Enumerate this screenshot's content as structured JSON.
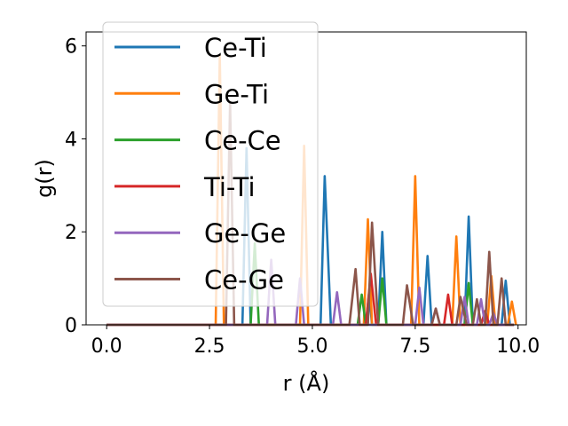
{
  "chart_data": {
    "type": "line",
    "title": "",
    "xlabel": "r (Å)",
    "ylabel": "g(r)",
    "xlim": [
      -0.5,
      10.2
    ],
    "ylim": [
      0,
      6.3
    ],
    "xticks": [
      0.0,
      2.5,
      5.0,
      7.5,
      10.0
    ],
    "xtick_labels": [
      "0.0",
      "2.5",
      "5.0",
      "7.5",
      "10.0"
    ],
    "yticks": [
      0,
      2,
      4,
      6
    ],
    "ytick_labels": [
      "0",
      "2",
      "4",
      "6"
    ],
    "grid": false,
    "legend": "upper-left",
    "series": [
      {
        "name": "Ce-Ti",
        "color": "#1f77b4",
        "points": [
          [
            0,
            0
          ],
          [
            3.3,
            0
          ],
          [
            3.4,
            3.8
          ],
          [
            3.5,
            0
          ],
          [
            5.2,
            0
          ],
          [
            5.3,
            3.2
          ],
          [
            5.45,
            0
          ],
          [
            6.3,
            0
          ],
          [
            6.38,
            0.7
          ],
          [
            6.45,
            0
          ],
          [
            6.6,
            0
          ],
          [
            6.7,
            2.0
          ],
          [
            6.8,
            0
          ],
          [
            7.7,
            0
          ],
          [
            7.8,
            1.48
          ],
          [
            7.9,
            0
          ],
          [
            8.7,
            0
          ],
          [
            8.8,
            2.33
          ],
          [
            8.9,
            0
          ],
          [
            9.6,
            0
          ],
          [
            9.7,
            0.95
          ],
          [
            9.8,
            0
          ],
          [
            9.9,
            0
          ]
        ]
      },
      {
        "name": "Ge-Ti",
        "color": "#ff7f0e",
        "points": [
          [
            0,
            0
          ],
          [
            2.65,
            0
          ],
          [
            2.75,
            5.8
          ],
          [
            2.85,
            0
          ],
          [
            4.7,
            0
          ],
          [
            4.8,
            3.85
          ],
          [
            4.9,
            0
          ],
          [
            6.25,
            0
          ],
          [
            6.35,
            2.27
          ],
          [
            6.45,
            0
          ],
          [
            7.4,
            0
          ],
          [
            7.5,
            3.2
          ],
          [
            7.6,
            0
          ],
          [
            8.4,
            0
          ],
          [
            8.5,
            1.9
          ],
          [
            8.6,
            0
          ],
          [
            9.25,
            0
          ],
          [
            9.35,
            1.05
          ],
          [
            9.45,
            0
          ],
          [
            9.75,
            0
          ],
          [
            9.85,
            0.5
          ],
          [
            9.95,
            0
          ]
        ]
      },
      {
        "name": "Ce-Ce",
        "color": "#2ca02c",
        "points": [
          [
            0,
            0
          ],
          [
            3.5,
            0
          ],
          [
            3.6,
            1.75
          ],
          [
            3.7,
            0
          ],
          [
            6.1,
            0
          ],
          [
            6.2,
            0.65
          ],
          [
            6.3,
            0
          ],
          [
            6.6,
            0
          ],
          [
            6.7,
            1.0
          ],
          [
            6.8,
            0
          ],
          [
            8.7,
            0
          ],
          [
            8.8,
            0.9
          ],
          [
            8.9,
            0
          ],
          [
            9.9,
            0
          ]
        ]
      },
      {
        "name": "Ti-Ti",
        "color": "#d62728",
        "points": [
          [
            0,
            0
          ],
          [
            6.3,
            0
          ],
          [
            6.42,
            1.1
          ],
          [
            6.55,
            0
          ],
          [
            8.2,
            0
          ],
          [
            8.3,
            0.65
          ],
          [
            8.4,
            0
          ],
          [
            9.1,
            0
          ],
          [
            9.2,
            0.3
          ],
          [
            9.3,
            0
          ],
          [
            9.9,
            0
          ]
        ]
      },
      {
        "name": "Ge-Ge",
        "color": "#9467bd",
        "points": [
          [
            0,
            0
          ],
          [
            3.9,
            0
          ],
          [
            4.0,
            1.4
          ],
          [
            4.1,
            0
          ],
          [
            4.6,
            0
          ],
          [
            4.7,
            1.0
          ],
          [
            4.8,
            0
          ],
          [
            5.5,
            0
          ],
          [
            5.6,
            0.7
          ],
          [
            5.7,
            0
          ],
          [
            7.5,
            0
          ],
          [
            7.6,
            0.8
          ],
          [
            7.7,
            0
          ],
          [
            7.9,
            0
          ],
          [
            8.0,
            0.35
          ],
          [
            8.1,
            0
          ],
          [
            8.6,
            0
          ],
          [
            8.7,
            0.6
          ],
          [
            8.8,
            0
          ],
          [
            9.0,
            0
          ],
          [
            9.1,
            0.55
          ],
          [
            9.2,
            0
          ],
          [
            9.3,
            0
          ],
          [
            9.4,
            0.25
          ],
          [
            9.5,
            0
          ],
          [
            9.9,
            0
          ]
        ]
      },
      {
        "name": "Ce-Ge",
        "color": "#8c564b",
        "points": [
          [
            0,
            0
          ],
          [
            2.9,
            0
          ],
          [
            3.0,
            4.8
          ],
          [
            3.1,
            0
          ],
          [
            5.9,
            0
          ],
          [
            6.05,
            1.2
          ],
          [
            6.15,
            0
          ],
          [
            6.35,
            0
          ],
          [
            6.45,
            2.2
          ],
          [
            6.6,
            0
          ],
          [
            7.2,
            0
          ],
          [
            7.3,
            0.85
          ],
          [
            7.45,
            0
          ],
          [
            7.9,
            0
          ],
          [
            8.0,
            0.35
          ],
          [
            8.1,
            0
          ],
          [
            8.5,
            0
          ],
          [
            8.6,
            0.6
          ],
          [
            8.75,
            0
          ],
          [
            8.9,
            0
          ],
          [
            9.0,
            0.55
          ],
          [
            9.1,
            0
          ],
          [
            9.2,
            0
          ],
          [
            9.3,
            1.57
          ],
          [
            9.4,
            0
          ],
          [
            9.5,
            0
          ],
          [
            9.6,
            1.0
          ],
          [
            9.7,
            0
          ],
          [
            9.9,
            0
          ]
        ]
      }
    ]
  }
}
